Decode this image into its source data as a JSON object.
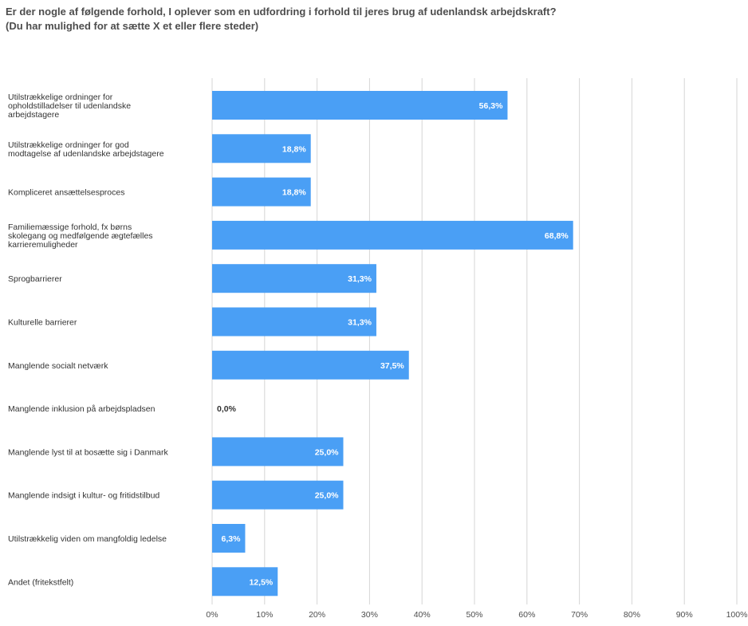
{
  "chart_data": {
    "type": "bar",
    "orientation": "horizontal",
    "title_line1": "Er der nogle af følgende forhold, I oplever som en udfordring i forhold til jeres brug af udenlandsk arbejdskraft?",
    "title_line2": "(Du har mulighed for at sætte X et eller flere steder)",
    "categories": [
      "Utilstrækkelige ordninger for opholdstilladelser til udenlandske arbejdstagere",
      "Utilstrækkelige ordninger for god modtagelse af udenlandske arbejdstagere",
      "Kompliceret ansættelsesproces",
      "Familiemæssige forhold, fx børns skolegang og medfølgende ægtefælles karrieremuligheder",
      "Sprogbarrierer",
      "Kulturelle barrierer",
      "Manglende socialt netværk",
      "Manglende inklusion på arbejdspladsen",
      "Manglende lyst til at bosætte sig i Danmark",
      "Manglende indsigt i kultur- og fritidstilbud",
      "Utilstrækkelig viden om mangfoldig ledelse",
      "Andet (fritekstfelt)"
    ],
    "category_lines": [
      [
        "Utilstrækkelige ordninger for",
        "opholdstilladelser til udenlandske",
        "arbejdstagere"
      ],
      [
        "Utilstrækkelige ordninger for god",
        "modtagelse af udenlandske arbejdstagere"
      ],
      [
        "Kompliceret ansættelsesproces"
      ],
      [
        "Familiemæssige forhold, fx børns",
        "skolegang og medfølgende ægtefælles",
        "karrieremuligheder"
      ],
      [
        "Sprogbarrierer"
      ],
      [
        "Kulturelle barrierer"
      ],
      [
        "Manglende socialt netværk"
      ],
      [
        "Manglende inklusion på arbejdspladsen"
      ],
      [
        "Manglende lyst til at bosætte sig i Danmark"
      ],
      [
        "Manglende indsigt i kultur- og fritidstilbud"
      ],
      [
        "Utilstrækkelig viden om mangfoldig ledelse"
      ],
      [
        "Andet (fritekstfelt)"
      ]
    ],
    "values": [
      56.3,
      18.8,
      18.8,
      68.8,
      31.3,
      31.3,
      37.5,
      0.0,
      25.0,
      25.0,
      6.3,
      12.5
    ],
    "value_labels": [
      "56,3%",
      "18,8%",
      "18,8%",
      "68,8%",
      "31,3%",
      "31,3%",
      "37,5%",
      "0,0%",
      "25,0%",
      "25,0%",
      "6,3%",
      "12,5%"
    ],
    "x_ticks": [
      "0%",
      "10%",
      "20%",
      "30%",
      "40%",
      "50%",
      "60%",
      "70%",
      "80%",
      "90%",
      "100%"
    ],
    "xlim": [
      0,
      100
    ],
    "grid": true,
    "legend": "none",
    "colors": {
      "bar": "#4a9ff5",
      "grid": "#d6d6d6",
      "label_inside": "#ffffff",
      "label_outside": "#333333"
    }
  }
}
